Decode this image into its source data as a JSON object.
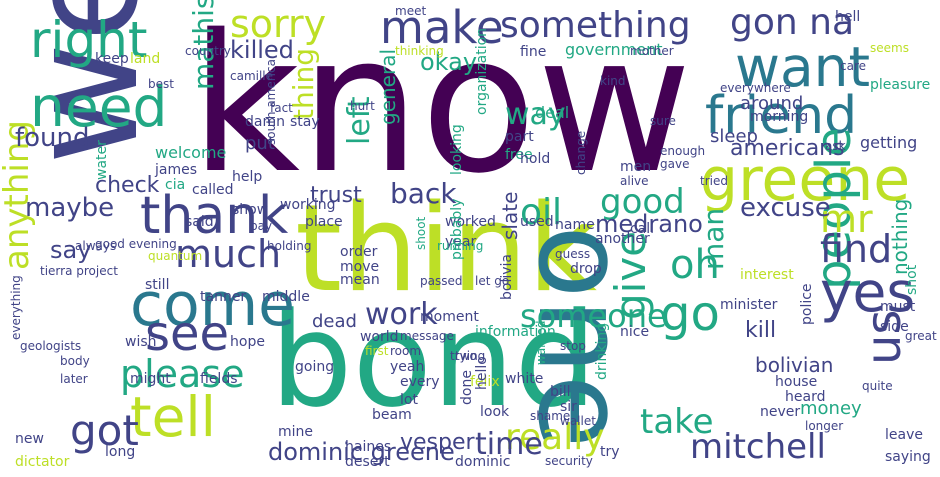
{
  "colors": {
    "deep_purple": "#440154",
    "indigo": "#414487",
    "blue": "#2a788e",
    "teal": "#22a884",
    "green": "#7ad151",
    "lime": "#bddf26",
    "yellow": "#fde725"
  },
  "words": {
    "know": "know",
    "well": "well",
    "bond": "bond",
    "think": "think",
    "one": "one",
    "greene": "greene",
    "friend": "friend",
    "want": "want",
    "need": "need",
    "right": "right",
    "come": "come",
    "see": "see",
    "tell": "tell",
    "thank": "thank",
    "make": "make",
    "something": "something",
    "sorry": "sorry",
    "gonna": "gon na",
    "people": "people",
    "us": "us",
    "yes": "yes",
    "give": "give",
    "go": "go",
    "got": "got",
    "much": "much",
    "please": "please",
    "oh": "oh",
    "mr": "mr",
    "find": "find",
    "really": "really",
    "mitchell": "mitchell",
    "take": "take",
    "time": "time",
    "good": "good",
    "oil": "oil",
    "someone": "someone",
    "anything": "anything",
    "work": "work",
    "back": "back",
    "excuse": "excuse",
    "man": "man",
    "killed": "killed",
    "thing": "thing",
    "left": "left",
    "mathis": "mathis",
    "way": "way",
    "found": "found",
    "maybe": "maybe",
    "say": "say",
    "check": "check",
    "okay": "okay",
    "americans": "americans",
    "medrano": "medrano",
    "trust": "trust",
    "general": "general",
    "dominic_greene": "dominic greene",
    "vesper": "vesper",
    "kill": "kill",
    "bolivian": "bolivian",
    "nothing": "nothing",
    "money": "money",
    "dead": "dead",
    "government": "government",
    "around": "around",
    "sleep": "sleep",
    "getting": "getting",
    "slate": "slate",
    "put": "put",
    "welcome": "welcome",
    "james": "james",
    "cia": "cia",
    "keep": "keep",
    "land": "land",
    "country": "country",
    "fine": "fine",
    "hell": "hell",
    "best": "best",
    "water": "water",
    "fact": "fact",
    "damn": "damn",
    "stay": "stay",
    "deal": "deal",
    "morning": "morning",
    "pleasure": "pleasure",
    "seems": "seems",
    "organization": "organization",
    "part": "part",
    "free": "free",
    "south_america": "south america",
    "help": "help",
    "called": "called",
    "working": "working",
    "looking": "looking",
    "hold": "hold",
    "call": "call",
    "used": "used",
    "name": "name",
    "another": "another",
    "worked": "worked",
    "year": "year",
    "place": "place",
    "show": "show",
    "said": "said",
    "order": "order",
    "move": "move",
    "mean": "mean",
    "middle": "middle",
    "tanner": "tanner",
    "tierra_project": "tierra project",
    "quantum": "quantum",
    "still": "still",
    "wish": "wish",
    "might": "might",
    "fields": "fields",
    "hope": "hope",
    "going": "going",
    "world": "world",
    "room": "room",
    "yeah": "yeah",
    "moment": "moment",
    "information": "information",
    "bolivia": "bolivia",
    "probably": "probably",
    "shoot": "shoot",
    "drop": "drop",
    "minister": "minister",
    "interest": "interest",
    "police": "police",
    "side": "side",
    "must": "must",
    "shot": "shot",
    "nice": "nice",
    "great": "great",
    "house": "house",
    "heard": "heard",
    "quite": "quite",
    "never": "never",
    "leave": "leave",
    "saying": "saying",
    "longer": "longer",
    "drinking": "drinking",
    "felix": "felix",
    "white": "white",
    "bill": "bill",
    "wanted": "wanted",
    "two": "two",
    "every": "every",
    "lot": "lot",
    "beam": "beam",
    "sir": "sir",
    "done": "done",
    "hello": "hello",
    "look": "look",
    "shame": "shame",
    "wallet": "wallet",
    "try": "try",
    "dominic": "dominic",
    "desert": "desert",
    "haines": "haines",
    "mine": "mine",
    "long": "long",
    "new": "new",
    "dictator": "dictator",
    "everything": "everything",
    "geologists": "geologists",
    "body": "body",
    "later": "later",
    "always": "always",
    "good_evening": "good evening",
    "camille": "camille",
    "meet": "meet",
    "mother": "mother",
    "care": "care",
    "everywhere": "everywhere",
    "see_small": "see",
    "men": "men",
    "alive": "alive",
    "change": "change",
    "enough": "enough",
    "gave": "gave",
    "guess": "guess",
    "let_go": "let go",
    "passed": "passed",
    "trying": "trying",
    "message": "message",
    "first": "first",
    "security": "security",
    "stop": "stop",
    "holding": "holding",
    "running": "running",
    "thinking": "thinking",
    "kind": "kind",
    "sure": "sure",
    "tried": "tried",
    "hurt": "hurt",
    "ask": "ask",
    "pay": "pay"
  }
}
